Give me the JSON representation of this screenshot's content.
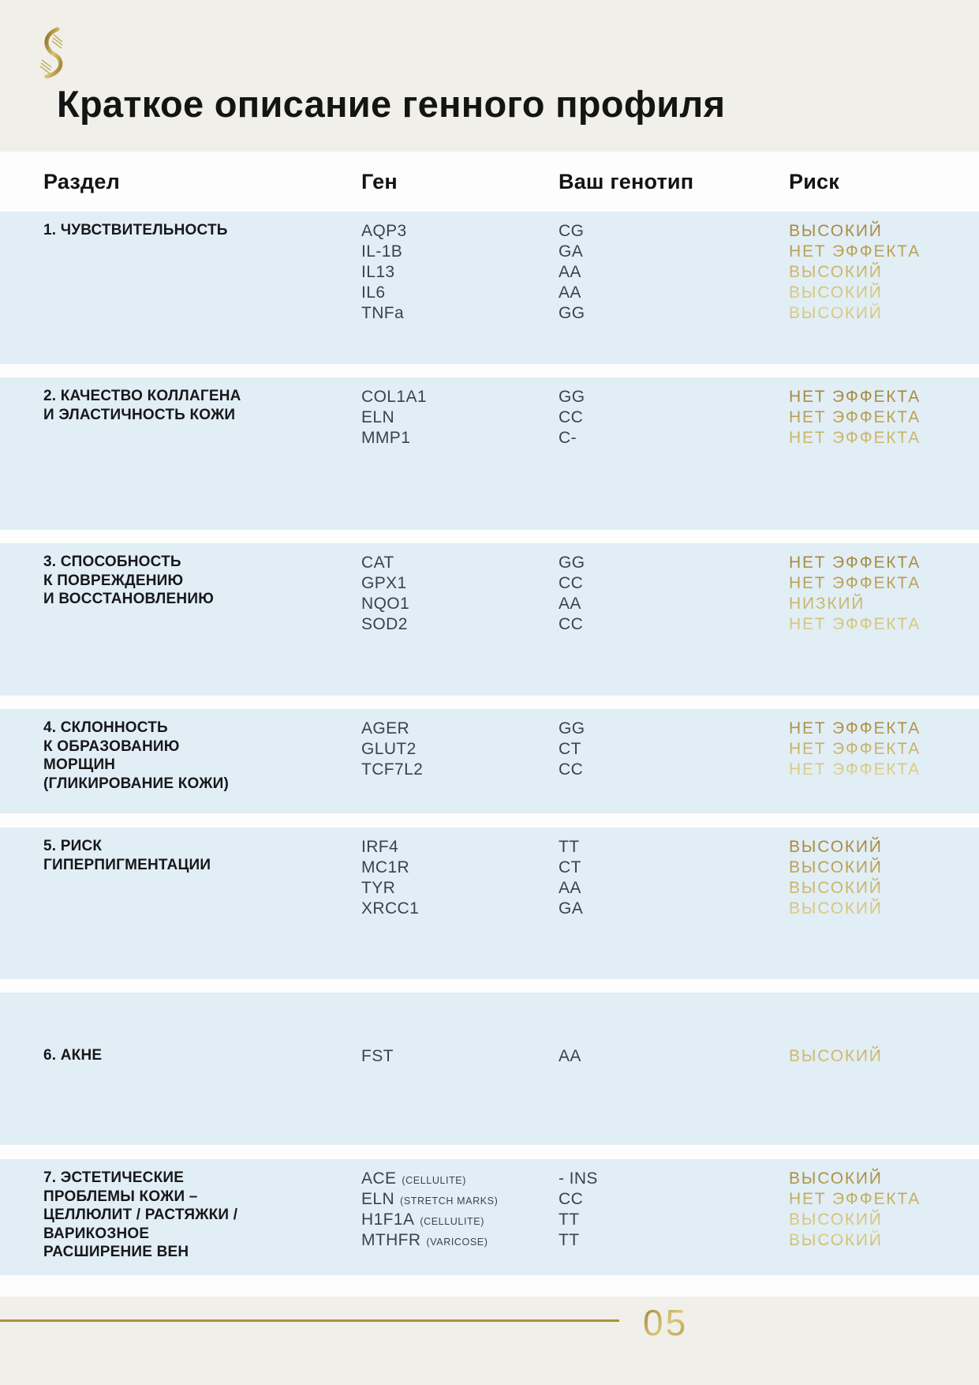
{
  "page": {
    "title": "Краткое описание генного профиля",
    "page_number": "05",
    "logo": "dna-helix-icon"
  },
  "colors": {
    "accent_gold": "#b0923b",
    "gold_light": "#ddd289",
    "band_blue": "#e2eef5",
    "background_beige": "#f0efe9",
    "text_dark": "#141414",
    "text_slate": "#3a424f"
  },
  "table": {
    "headers": {
      "section": "Раздел",
      "gene": "Ген",
      "genotype": "Ваш генотип",
      "risk": "Риск"
    },
    "sections": [
      {
        "title_lines": [
          "1. ЧУВСТВИТЕЛЬНОСТЬ"
        ],
        "rows": [
          {
            "gene": "AQP3",
            "genotype": "CG",
            "risk": "ВЫСОКИЙ"
          },
          {
            "gene": "IL-1B",
            "genotype": "GA",
            "risk": "НЕТ ЭФФЕКТА"
          },
          {
            "gene": "IL13",
            "genotype": "AA",
            "risk": "ВЫСОКИЙ"
          },
          {
            "gene": "IL6",
            "genotype": "AA",
            "risk": "ВЫСОКИЙ"
          },
          {
            "gene": "TNFa",
            "genotype": "GG",
            "risk": "ВЫСОКИЙ"
          }
        ]
      },
      {
        "title_lines": [
          "2. КАЧЕСТВО КОЛЛАГЕНА",
          "И ЭЛАСТИЧНОСТЬ КОЖИ"
        ],
        "rows": [
          {
            "gene": "COL1A1",
            "genotype": "GG",
            "risk": "НЕТ ЭФФЕКТА"
          },
          {
            "gene": "ELN",
            "genotype": "CC",
            "risk": "НЕТ ЭФФЕКТА"
          },
          {
            "gene": "MMP1",
            "genotype": "C-",
            "risk": "НЕТ ЭФФЕКТА"
          }
        ]
      },
      {
        "title_lines": [
          "3. СПОСОБНОСТЬ",
          "К ПОВРЕЖДЕНИЮ",
          "И ВОССТАНОВЛЕНИЮ"
        ],
        "rows": [
          {
            "gene": "CAT",
            "genotype": "GG",
            "risk": "НЕТ ЭФФЕКТА"
          },
          {
            "gene": "GPX1",
            "genotype": "CC",
            "risk": "НЕТ ЭФФЕКТА"
          },
          {
            "gene": "NQO1",
            "genotype": "AA",
            "risk": "НИЗКИЙ"
          },
          {
            "gene": "SOD2",
            "genotype": "CC",
            "risk": "НЕТ ЭФФЕКТА"
          }
        ]
      },
      {
        "title_lines": [
          "4. СКЛОННОСТЬ",
          "К ОБРАЗОВАНИЮ",
          "МОРЩИН",
          "(ГЛИКИРОВАНИЕ КОЖИ)"
        ],
        "rows": [
          {
            "gene": "AGER",
            "genotype": "GG",
            "risk": "НЕТ ЭФФЕКТА"
          },
          {
            "gene": "GLUT2",
            "genotype": "CT",
            "risk": "НЕТ ЭФФЕКТА"
          },
          {
            "gene": "TCF7L2",
            "genotype": "CC",
            "risk": "НЕТ ЭФФЕКТА"
          }
        ]
      },
      {
        "title_lines": [
          "5. РИСК",
          "ГИПЕРПИГМЕНТАЦИИ"
        ],
        "rows": [
          {
            "gene": "IRF4",
            "genotype": "TT",
            "risk": "ВЫСОКИЙ"
          },
          {
            "gene": "MC1R",
            "genotype": "CT",
            "risk": "ВЫСОКИЙ"
          },
          {
            "gene": "TYR",
            "genotype": "AA",
            "risk": "ВЫСОКИЙ"
          },
          {
            "gene": "XRCC1",
            "genotype": "GA",
            "risk": "ВЫСОКИЙ"
          }
        ]
      },
      {
        "title_lines": [
          "6. АКНЕ"
        ],
        "rows": [
          {
            "gene": "FST",
            "genotype": "AA",
            "risk": "ВЫСОКИЙ"
          }
        ]
      },
      {
        "title_lines": [
          "7. ЭСТЕТИЧЕСКИЕ",
          "ПРОБЛЕМЫ КОЖИ –",
          "ЦЕЛЛЮЛИТ / РАСТЯЖКИ /",
          "ВАРИКОЗНОЕ",
          "РАСШИРЕНИЕ ВЕН"
        ],
        "rows": [
          {
            "gene": "ACE",
            "note": "(CELLULITE)",
            "genotype": "- INS",
            "risk": "ВЫСОКИЙ"
          },
          {
            "gene": "ELN",
            "note": "(STRETCH MARKS)",
            "genotype": "CC",
            "risk": "НЕТ ЭФФЕКТА"
          },
          {
            "gene": "H1F1A",
            "note": "(CELLULITE)",
            "genotype": "TT",
            "risk": "ВЫСОКИЙ"
          },
          {
            "gene": "MTHFR",
            "note": "(VARICOSE)",
            "genotype": "TT",
            "risk": "ВЫСОКИЙ"
          }
        ]
      }
    ]
  }
}
